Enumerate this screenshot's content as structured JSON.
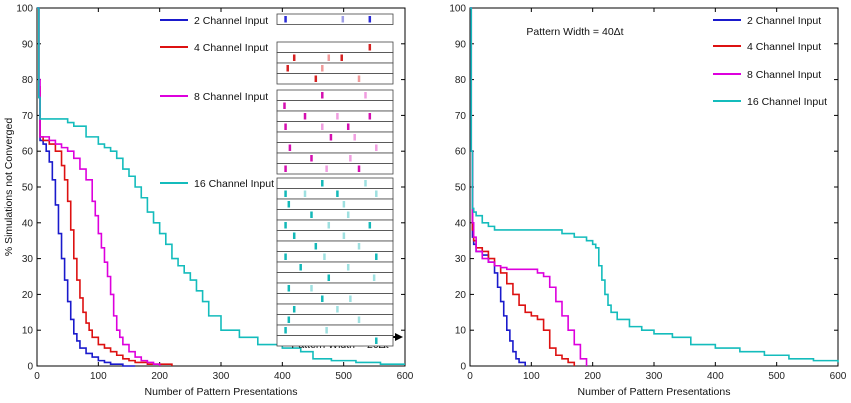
{
  "chart_data": [
    {
      "type": "line",
      "panel": "left",
      "title": "",
      "xlabel": "Number of Pattern Presentations",
      "ylabel": "% Simulations not Converged",
      "xlim": [
        0,
        600
      ],
      "ylim": [
        0,
        100
      ],
      "xticks": [
        0,
        100,
        200,
        300,
        400,
        500,
        600
      ],
      "yticks": [
        0,
        10,
        20,
        30,
        40,
        50,
        60,
        70,
        80,
        90,
        100
      ],
      "grid": false,
      "legend_position": "top-right",
      "annotation": "Pattern Width = 20Δt",
      "series": [
        {
          "name": "2  Channel Input",
          "color": "#1a1acc",
          "x": [
            0,
            3,
            5,
            10,
            15,
            20,
            25,
            30,
            35,
            40,
            45,
            50,
            55,
            60,
            65,
            70,
            80,
            90,
            100,
            110,
            120,
            130,
            140,
            160
          ],
          "y": [
            100,
            75,
            63,
            62,
            60,
            57,
            52,
            45,
            37,
            30,
            24,
            18,
            13,
            9,
            7,
            5,
            3.5,
            2.5,
            1.5,
            1,
            0.5,
            0.5,
            0,
            0
          ]
        },
        {
          "name": "4  Channel Input",
          "color": "#dd1111",
          "x": [
            0,
            3,
            5,
            10,
            20,
            30,
            40,
            45,
            50,
            55,
            60,
            65,
            70,
            75,
            80,
            85,
            90,
            100,
            110,
            120,
            130,
            140,
            150,
            160,
            180,
            200,
            220
          ],
          "y": [
            100,
            78,
            64,
            63,
            62,
            60,
            56,
            52,
            46,
            38,
            30,
            24,
            19,
            15,
            12,
            10,
            8,
            6,
            5,
            4,
            3,
            2,
            1.5,
            1,
            0.5,
            0.5,
            0
          ]
        },
        {
          "name": "8  Channel Input",
          "color": "#dd00dd",
          "x": [
            0,
            3,
            5,
            10,
            20,
            30,
            40,
            50,
            60,
            70,
            80,
            90,
            95,
            100,
            105,
            110,
            115,
            120,
            125,
            130,
            135,
            140,
            150,
            160,
            170,
            180,
            190,
            200
          ],
          "y": [
            100,
            80,
            64,
            64,
            63,
            62,
            61,
            60,
            58,
            55,
            52,
            46,
            42,
            37,
            33,
            29,
            25,
            20,
            14,
            10,
            8,
            6,
            4,
            2.5,
            1.5,
            1,
            0.5,
            0
          ]
        },
        {
          "name": "16 Channel Input",
          "color": "#14bcbc",
          "x": [
            0,
            3,
            5,
            10,
            30,
            50,
            60,
            80,
            100,
            110,
            120,
            130,
            140,
            150,
            160,
            170,
            180,
            190,
            200,
            210,
            220,
            230,
            240,
            250,
            260,
            270,
            280,
            300,
            330,
            360,
            400,
            430,
            450,
            480,
            520,
            560,
            600
          ],
          "y": [
            100,
            75,
            69,
            69,
            69,
            68,
            67,
            64,
            62,
            61,
            60,
            58,
            55,
            53,
            50,
            47,
            43,
            40,
            37,
            34,
            30,
            28,
            26,
            24,
            21,
            18,
            14,
            10,
            8,
            6,
            5,
            4,
            2,
            1.5,
            1,
            0.5,
            0.5
          ]
        }
      ]
    },
    {
      "type": "line",
      "panel": "right",
      "title": "",
      "xlabel": "Number of Pattern Presentations",
      "ylabel": "",
      "xlim": [
        0,
        600
      ],
      "ylim": [
        0,
        100
      ],
      "xticks": [
        0,
        100,
        200,
        300,
        400,
        500,
        600
      ],
      "yticks": [
        0,
        10,
        20,
        30,
        40,
        50,
        60,
        70,
        80,
        90,
        100
      ],
      "grid": false,
      "legend_position": "top-right",
      "annotation": "Pattern Width = 40Δt",
      "series": [
        {
          "name": "2  Channel Input",
          "color": "#1a1acc",
          "x": [
            0,
            2,
            4,
            6,
            10,
            20,
            30,
            40,
            45,
            50,
            55,
            60,
            65,
            70,
            75,
            80,
            90
          ],
          "y": [
            100,
            60,
            36,
            34,
            32,
            31,
            29,
            26,
            22,
            18,
            14,
            10,
            7,
            4,
            2,
            1,
            0
          ]
        },
        {
          "name": "4  Channel Input",
          "color": "#dd1111",
          "x": [
            0,
            2,
            4,
            6,
            10,
            20,
            30,
            40,
            50,
            60,
            70,
            80,
            90,
            100,
            110,
            120,
            130,
            140,
            150,
            160,
            170
          ],
          "y": [
            100,
            60,
            38,
            35,
            33,
            32,
            30,
            28,
            26,
            23,
            20,
            17,
            15,
            14,
            13,
            10,
            5,
            3,
            2,
            1,
            0
          ]
        },
        {
          "name": "8  Channel Input",
          "color": "#dd00dd",
          "x": [
            0,
            2,
            4,
            6,
            10,
            20,
            30,
            40,
            50,
            60,
            70,
            80,
            100,
            110,
            120,
            130,
            140,
            150,
            160,
            170,
            180,
            190
          ],
          "y": [
            100,
            60,
            40,
            36,
            32,
            30,
            29,
            28,
            27.5,
            27,
            27,
            27,
            27,
            26,
            25,
            22,
            18,
            14,
            10,
            6,
            2,
            0
          ]
        },
        {
          "name": "16 Channel Input",
          "color": "#14bcbc",
          "x": [
            0,
            2,
            4,
            6,
            10,
            20,
            30,
            40,
            60,
            80,
            100,
            120,
            150,
            170,
            190,
            200,
            205,
            210,
            215,
            220,
            225,
            230,
            240,
            260,
            280,
            300,
            330,
            360,
            400,
            440,
            480,
            520,
            560,
            600
          ],
          "y": [
            100,
            60,
            44,
            43,
            42,
            40,
            39,
            38,
            38,
            38,
            38,
            38,
            37,
            36,
            35,
            34,
            33,
            28,
            24,
            20,
            17,
            15,
            13,
            11,
            10,
            9,
            8,
            6,
            5,
            4,
            3,
            2,
            1.5,
            1
          ]
        }
      ]
    }
  ],
  "legend": {
    "left": [
      "2  Channel Input",
      "4  Channel Input",
      "8  Channel Input",
      "16 Channel Input"
    ],
    "right": [
      "2  Channel Input",
      "4  Channel Input",
      "8  Channel Input",
      "16 Channel Input"
    ]
  },
  "raster": {
    "groups": [
      {
        "channels": 2,
        "color": "#2b2bd6",
        "light": "#9f9fe6",
        "rows": [
          [
            0.04,
            0.57,
            0.82
          ]
        ]
      },
      {
        "channels": 4,
        "color": "#d42222",
        "light": "#ef9a9a",
        "rows": [
          [
            0.82
          ],
          [
            0.12,
            0.44,
            0.56
          ],
          [
            0.06,
            0.38
          ],
          [
            0.32,
            0.72
          ]
        ]
      },
      {
        "channels": 8,
        "color": "#d40fb0",
        "light": "#f09de0",
        "rows": [
          [
            0.38,
            0.78
          ],
          [
            0.03
          ],
          [
            0.22,
            0.52,
            0.82
          ],
          [
            0.04,
            0.38,
            0.62
          ],
          [
            0.46,
            0.68
          ],
          [
            0.08,
            0.88
          ],
          [
            0.28,
            0.64
          ],
          [
            0.04,
            0.42,
            0.72
          ]
        ]
      },
      {
        "channels": 16,
        "color": "#14b8b8",
        "light": "#9ee0e0",
        "rows": [
          [
            0.38,
            0.78
          ],
          [
            0.04,
            0.22,
            0.52,
            0.88
          ],
          [
            0.07,
            0.58
          ],
          [
            0.28,
            0.62
          ],
          [
            0.04,
            0.44,
            0.82
          ],
          [
            0.12,
            0.58
          ],
          [
            0.32,
            0.72
          ],
          [
            0.04,
            0.4,
            0.88
          ],
          [
            0.18,
            0.62
          ],
          [
            0.44,
            0.86
          ],
          [
            0.07,
            0.28
          ],
          [
            0.38,
            0.64
          ],
          [
            0.12,
            0.52
          ],
          [
            0.07,
            0.72
          ],
          [
            0.04,
            0.42
          ],
          [
            0.88
          ]
        ]
      }
    ]
  }
}
